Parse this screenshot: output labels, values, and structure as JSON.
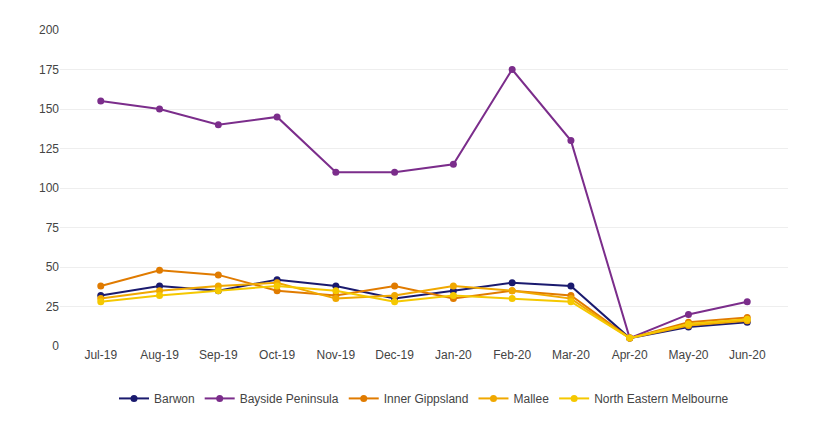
{
  "chart_data": {
    "type": "line",
    "categories": [
      "Jul-19",
      "Aug-19",
      "Sep-19",
      "Oct-19",
      "Nov-19",
      "Dec-19",
      "Jan-20",
      "Feb-20",
      "Mar-20",
      "Apr-20",
      "May-20",
      "Jun-20"
    ],
    "series": [
      {
        "name": "Barwon",
        "color": "#1a1a6e",
        "values": [
          32,
          38,
          35,
          42,
          38,
          30,
          35,
          40,
          38,
          5,
          12,
          15
        ]
      },
      {
        "name": "Bayside Peninsula",
        "color": "#7b2d8b",
        "values": [
          155,
          150,
          140,
          145,
          110,
          110,
          115,
          175,
          130,
          5,
          20,
          28
        ]
      },
      {
        "name": "Inner Gippsland",
        "color": "#e07b00",
        "values": [
          38,
          48,
          45,
          35,
          32,
          38,
          30,
          35,
          32,
          5,
          15,
          18
        ]
      },
      {
        "name": "Mallee",
        "color": "#f0a800",
        "values": [
          30,
          35,
          38,
          40,
          30,
          32,
          38,
          35,
          30,
          5,
          13,
          16
        ]
      },
      {
        "name": "North Eastern Melbourne",
        "color": "#f5c800",
        "values": [
          28,
          32,
          35,
          38,
          35,
          28,
          32,
          30,
          28,
          5,
          14,
          17
        ]
      }
    ],
    "ylim": [
      0,
      200
    ],
    "yticks": [
      0,
      25,
      50,
      75,
      100,
      125,
      150,
      175,
      200
    ],
    "grid": true,
    "legend": "bottom",
    "marker": "circle"
  }
}
